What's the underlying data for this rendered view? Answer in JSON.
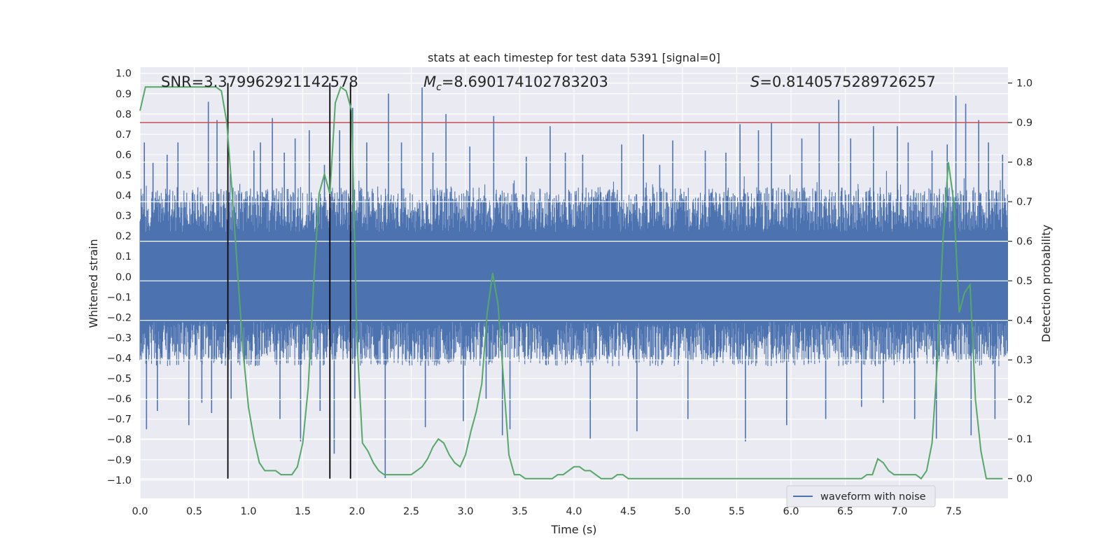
{
  "chart_data": {
    "type": "line",
    "title": "stats at each timestep for test data 5391 [signal=0]",
    "xlabel": "Time (s)",
    "ylabel_left": "Whitened strain",
    "ylabel_right": "Detection probability",
    "xlim": [
      0.0,
      8.0
    ],
    "ylim_left": [
      -1.09,
      1.03
    ],
    "ylim_right": [
      -0.05,
      1.04
    ],
    "x_ticks": [
      "0.0",
      "0.5",
      "1.0",
      "1.5",
      "2.0",
      "2.5",
      "3.0",
      "3.5",
      "4.0",
      "4.5",
      "5.0",
      "5.5",
      "6.0",
      "6.5",
      "7.0",
      "7.5"
    ],
    "y_ticks_left": [
      "−1.0",
      "−0.9",
      "−0.8",
      "−0.7",
      "−0.6",
      "−0.5",
      "−0.4",
      "−0.3",
      "−0.2",
      "−0.1",
      "0.0",
      "0.1",
      "0.2",
      "0.3",
      "0.4",
      "0.5",
      "0.6",
      "0.7",
      "0.8",
      "0.9",
      "1.0"
    ],
    "y_ticks_right": [
      "0.0",
      "0.1",
      "0.2",
      "0.3",
      "0.4",
      "0.5",
      "0.6",
      "0.7",
      "0.8",
      "0.9",
      "1.0"
    ],
    "annotations": {
      "snr": "SNR=3.379962921142578",
      "mc_symbol": "M",
      "mc_sub": "c",
      "mc_value": "=8.690174102783203",
      "s_symbol": "S",
      "s_value": "=0.8140575289726257"
    },
    "threshold": 0.9,
    "vertical_lines": [
      0.81,
      1.75,
      1.94
    ],
    "legend": {
      "label": "waveform with noise",
      "position": "bottom-right"
    },
    "colors": {
      "waveform": "#4c72b0",
      "probability": "#55a868",
      "threshold": "#c44e52",
      "markers": "#000000",
      "background": "#eaeaf2"
    },
    "series": [
      {
        "name": "waveform with noise",
        "axis": "left",
        "description": "dense whitened strain noise, bulk amplitude about ±0.4 with spikes up to ±0.95",
        "spikes": [
          [
            0.04,
            0.66
          ],
          [
            0.06,
            -0.75
          ],
          [
            0.12,
            0.56
          ],
          [
            0.16,
            -0.66
          ],
          [
            0.25,
            0.6
          ],
          [
            0.35,
            0.66
          ],
          [
            0.45,
            -0.73
          ],
          [
            0.57,
            -0.62
          ],
          [
            0.63,
            0.86
          ],
          [
            0.66,
            -0.67
          ],
          [
            0.71,
            0.77
          ],
          [
            0.84,
            -0.6
          ],
          [
            1.05,
            0.62
          ],
          [
            1.11,
            0.66
          ],
          [
            1.22,
            0.78
          ],
          [
            1.29,
            -0.7
          ],
          [
            1.33,
            0.61
          ],
          [
            1.43,
            0.68
          ],
          [
            1.48,
            -0.81
          ],
          [
            1.56,
            0.72
          ],
          [
            1.66,
            -0.66
          ],
          [
            1.7,
            0.55
          ],
          [
            1.79,
            -0.87
          ],
          [
            1.84,
            0.72
          ],
          [
            1.96,
            0.83
          ],
          [
            1.98,
            -0.6
          ],
          [
            2.09,
            0.66
          ],
          [
            2.26,
            -0.99
          ],
          [
            2.29,
            0.9
          ],
          [
            2.41,
            0.66
          ],
          [
            2.6,
            0.93
          ],
          [
            2.63,
            -0.74
          ],
          [
            2.7,
            0.61
          ],
          [
            2.82,
            0.8
          ],
          [
            2.98,
            -0.71
          ],
          [
            3.04,
            0.64
          ],
          [
            3.19,
            -0.6
          ],
          [
            3.26,
            0.79
          ],
          [
            3.34,
            -0.78
          ],
          [
            3.41,
            -0.75
          ],
          [
            3.56,
            0.59
          ],
          [
            3.78,
            0.74
          ],
          [
            3.92,
            0.61
          ],
          [
            4.08,
            0.6
          ],
          [
            4.15,
            -0.8
          ],
          [
            4.44,
            0.65
          ],
          [
            4.58,
            -0.76
          ],
          [
            4.64,
            0.7
          ],
          [
            4.79,
            0.55
          ],
          [
            4.91,
            0.67
          ],
          [
            5.05,
            -0.7
          ],
          [
            5.21,
            0.62
          ],
          [
            5.4,
            0.61
          ],
          [
            5.53,
            0.75
          ],
          [
            5.58,
            -0.81
          ],
          [
            5.7,
            0.72
          ],
          [
            5.82,
            0.76
          ],
          [
            5.96,
            -0.73
          ],
          [
            6.1,
            0.68
          ],
          [
            6.26,
            0.76
          ],
          [
            6.32,
            -0.7
          ],
          [
            6.44,
            0.87
          ],
          [
            6.55,
            0.68
          ],
          [
            6.65,
            -0.64
          ],
          [
            6.76,
            0.74
          ],
          [
            6.85,
            -0.62
          ],
          [
            6.98,
            0.74
          ],
          [
            7.08,
            0.66
          ],
          [
            7.14,
            -0.7
          ],
          [
            7.3,
            0.62
          ],
          [
            7.34,
            -0.8
          ],
          [
            7.44,
            0.65
          ],
          [
            7.52,
            0.89
          ],
          [
            7.61,
            0.85
          ],
          [
            7.66,
            -0.78
          ],
          [
            7.73,
            0.77
          ],
          [
            7.82,
            0.66
          ],
          [
            7.88,
            -0.7
          ],
          [
            7.95,
            0.6
          ]
        ]
      },
      {
        "name": "detection probability",
        "axis": "right",
        "x": [
          0.0,
          0.05,
          0.1,
          0.2,
          0.3,
          0.4,
          0.5,
          0.6,
          0.7,
          0.75,
          0.8,
          0.85,
          0.9,
          0.95,
          1.0,
          1.05,
          1.1,
          1.15,
          1.2,
          1.25,
          1.3,
          1.35,
          1.4,
          1.45,
          1.5,
          1.55,
          1.6,
          1.65,
          1.7,
          1.75,
          1.8,
          1.85,
          1.9,
          1.95,
          2.0,
          2.05,
          2.1,
          2.15,
          2.2,
          2.25,
          2.3,
          2.35,
          2.4,
          2.45,
          2.5,
          2.55,
          2.6,
          2.65,
          2.7,
          2.75,
          2.8,
          2.85,
          2.9,
          2.95,
          3.0,
          3.05,
          3.1,
          3.15,
          3.2,
          3.25,
          3.3,
          3.35,
          3.4,
          3.45,
          3.5,
          3.55,
          3.6,
          3.65,
          3.7,
          3.75,
          3.8,
          3.85,
          3.9,
          3.95,
          4.0,
          4.05,
          4.1,
          4.15,
          4.2,
          4.25,
          4.3,
          4.35,
          4.4,
          4.45,
          4.5,
          4.55,
          4.6,
          4.65,
          4.7,
          4.75,
          4.8,
          4.9,
          5.0,
          5.2,
          5.4,
          5.5,
          5.6,
          5.8,
          6.0,
          6.2,
          6.4,
          6.5,
          6.6,
          6.65,
          6.7,
          6.75,
          6.8,
          6.85,
          6.9,
          6.95,
          7.0,
          7.05,
          7.1,
          7.15,
          7.2,
          7.25,
          7.3,
          7.35,
          7.4,
          7.45,
          7.5,
          7.55,
          7.6,
          7.65,
          7.7,
          7.75,
          7.8,
          7.85,
          7.9,
          7.95
        ],
        "values": [
          0.93,
          0.99,
          0.99,
          0.99,
          0.99,
          0.99,
          0.99,
          0.99,
          0.99,
          0.98,
          0.9,
          0.72,
          0.52,
          0.32,
          0.18,
          0.1,
          0.04,
          0.02,
          0.02,
          0.02,
          0.01,
          0.01,
          0.01,
          0.03,
          0.09,
          0.23,
          0.49,
          0.72,
          0.77,
          0.72,
          0.95,
          0.99,
          0.98,
          0.93,
          0.35,
          0.09,
          0.07,
          0.04,
          0.02,
          0.01,
          0.01,
          0.01,
          0.01,
          0.01,
          0.01,
          0.02,
          0.03,
          0.05,
          0.08,
          0.1,
          0.09,
          0.06,
          0.04,
          0.03,
          0.06,
          0.12,
          0.17,
          0.24,
          0.42,
          0.52,
          0.44,
          0.25,
          0.06,
          0.01,
          0.01,
          0.0,
          0.0,
          0.0,
          0.0,
          0.0,
          0.0,
          0.01,
          0.01,
          0.02,
          0.03,
          0.03,
          0.02,
          0.02,
          0.01,
          0.0,
          0.0,
          0.0,
          0.01,
          0.01,
          0.0,
          0.0,
          0.0,
          0.0,
          0.0,
          0.0,
          0.0,
          0.0,
          0.0,
          0.0,
          0.0,
          0.0,
          0.0,
          0.0,
          0.0,
          0.0,
          0.0,
          0.0,
          0.0,
          0.0,
          0.01,
          0.01,
          0.05,
          0.04,
          0.02,
          0.01,
          0.01,
          0.01,
          0.01,
          0.01,
          0.0,
          0.02,
          0.09,
          0.3,
          0.6,
          0.8,
          0.7,
          0.42,
          0.47,
          0.49,
          0.2,
          0.07,
          0.0,
          0.0,
          0.0,
          0.0
        ]
      }
    ]
  }
}
